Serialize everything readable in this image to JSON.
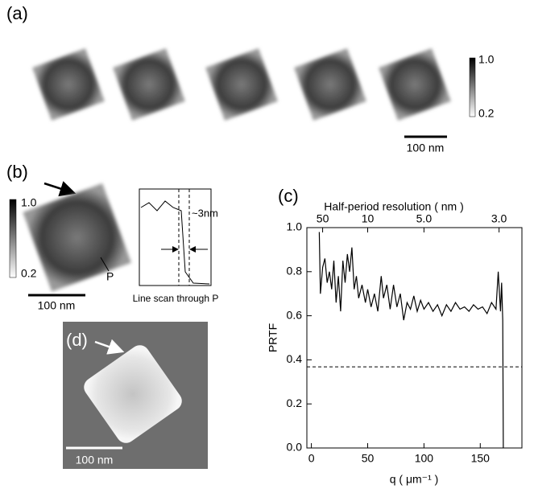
{
  "panels": {
    "a": {
      "label": "(a)",
      "colorbar_max": "1.0",
      "colorbar_min": "0.2",
      "scale": "100 nm"
    },
    "b": {
      "label": "(b)",
      "colorbar_max": "1.0",
      "colorbar_min": "0.2",
      "scale": "100 nm",
      "point": "P",
      "width_note": "~3nm",
      "inset_caption": "Line scan through P"
    },
    "d": {
      "label": "(d)",
      "scale": "100 nm"
    }
  },
  "chart_data": {
    "type": "line",
    "label": "(c)",
    "x_label": "q ( μm⁻¹ )",
    "y_label": "PRTF",
    "x2_label": "Half-period resolution ( nm )",
    "color": "#000000",
    "x": [
      7,
      8,
      10,
      12,
      14,
      16,
      18,
      20,
      22,
      24,
      26,
      28,
      30,
      32,
      34,
      36,
      38,
      40,
      42,
      45,
      48,
      50,
      53,
      56,
      59,
      62,
      64,
      67,
      70,
      73,
      76,
      79,
      82,
      85,
      88,
      91,
      94,
      97,
      100,
      104,
      108,
      112,
      116,
      120,
      124,
      128,
      132,
      136,
      140,
      144,
      148,
      152,
      156,
      160,
      164,
      166,
      168,
      169,
      170,
      170.5
    ],
    "values": [
      0.98,
      0.7,
      0.82,
      0.86,
      0.75,
      0.8,
      0.72,
      0.85,
      0.66,
      0.78,
      0.62,
      0.85,
      0.75,
      0.88,
      0.8,
      0.91,
      0.72,
      0.78,
      0.68,
      0.74,
      0.66,
      0.72,
      0.64,
      0.7,
      0.62,
      0.78,
      0.68,
      0.74,
      0.63,
      0.74,
      0.64,
      0.7,
      0.58,
      0.66,
      0.63,
      0.69,
      0.62,
      0.67,
      0.63,
      0.66,
      0.62,
      0.65,
      0.6,
      0.65,
      0.62,
      0.66,
      0.63,
      0.64,
      0.62,
      0.65,
      0.63,
      0.64,
      0.61,
      0.66,
      0.63,
      0.8,
      0.62,
      0.75,
      0.58,
      0
    ],
    "threshold": 0.368,
    "xlim": [
      -4,
      187
    ],
    "ylim": [
      0,
      1
    ],
    "xticks": [
      0,
      50,
      100,
      150
    ],
    "yticks": [
      {
        "value": 0,
        "label": "0.0"
      },
      {
        "value": 0.2,
        "label": "0.2"
      },
      {
        "value": 0.4,
        "label": "0.4"
      },
      {
        "value": 0.6,
        "label": "0.6"
      },
      {
        "value": 0.8,
        "label": "0.8"
      },
      {
        "value": 1,
        "label": "1.0"
      }
    ],
    "x2ticks": [
      {
        "value": 10,
        "label": "50"
      },
      {
        "value": 50,
        "label": "10"
      },
      {
        "value": 100,
        "label": "5.0"
      },
      {
        "value": 166.7,
        "label": "3.0"
      }
    ]
  }
}
